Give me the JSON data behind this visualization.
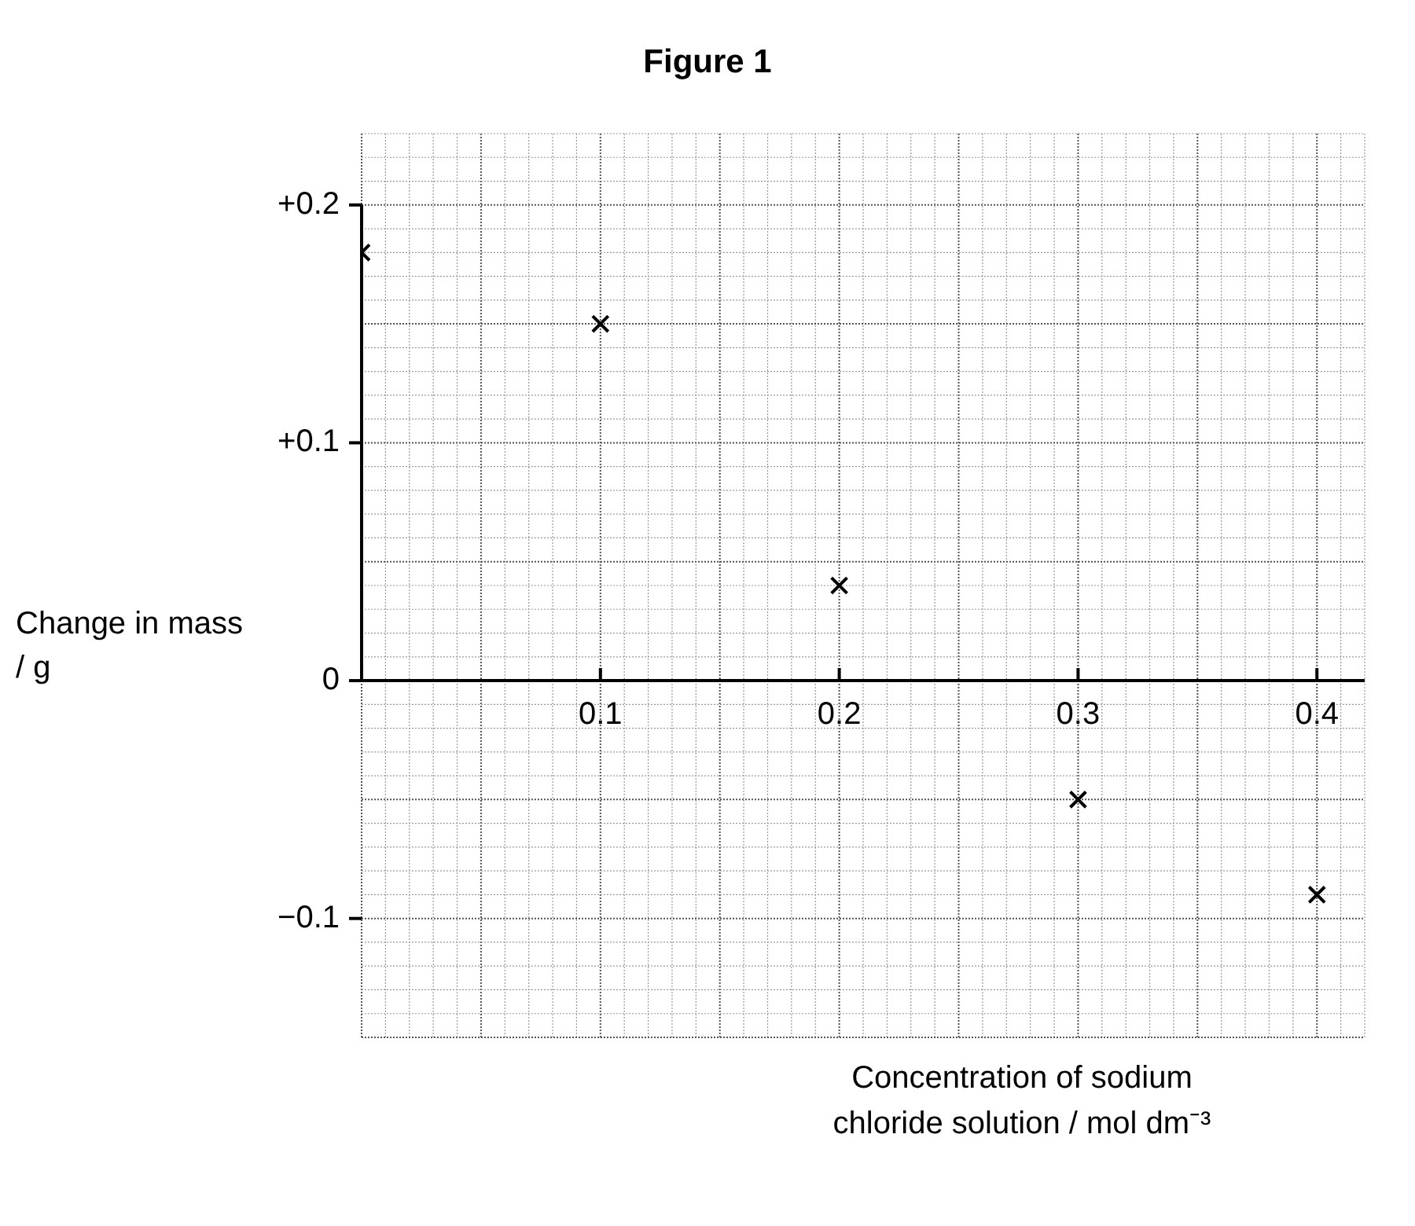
{
  "chart_data": {
    "type": "scatter",
    "title": "Figure 1",
    "xlabel": "Concentration of sodium chloride solution / mol dm⁻³",
    "ylabel": "Change in mass / g",
    "x": [
      0,
      0.1,
      0.2,
      0.3,
      0.4
    ],
    "series": [
      {
        "color": "#000000",
        "values": [
          0.18,
          0.15,
          0.04,
          -0.05,
          -0.09
        ]
      }
    ],
    "xlim": [
      0,
      0.42
    ],
    "ylim": [
      -0.15,
      0.23
    ],
    "xticks": [
      0.1,
      0.2,
      0.3,
      0.4
    ],
    "yticks": [
      {
        "value": -0.1,
        "label": "−0.1"
      },
      0,
      {
        "value": 0.1,
        "label": "+0.1"
      },
      {
        "value": 0.2,
        "label": "+0.2"
      }
    ],
    "grid": true,
    "marker": "cross",
    "legend": false
  }
}
